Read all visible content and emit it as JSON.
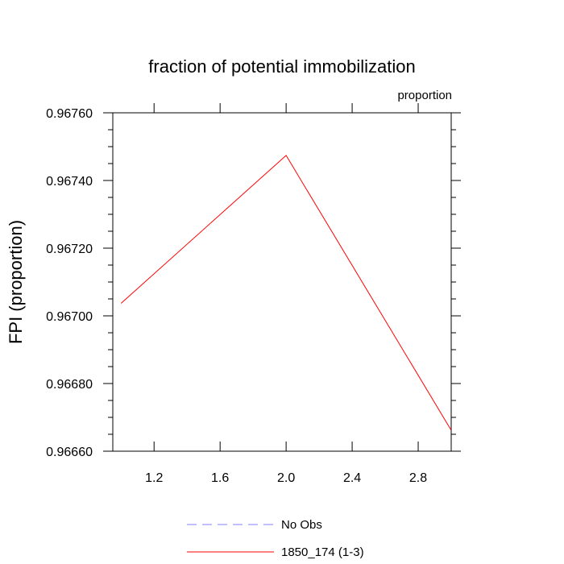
{
  "chart_data": {
    "type": "line",
    "title": "fraction of potential immobilization",
    "units_label": "proportion",
    "xlabel": "",
    "ylabel": "FPI  (proportion)",
    "xlim": [
      0.95,
      3.0
    ],
    "ylim": [
      0.9666,
      0.9676
    ],
    "x_ticks": [
      1.2,
      1.6,
      2.0,
      2.4,
      2.8
    ],
    "x_tick_labels": [
      "1.2",
      "1.6",
      "2.0",
      "2.4",
      "2.8"
    ],
    "y_ticks": [
      0.9666,
      0.9668,
      0.967,
      0.9672,
      0.9674,
      0.9676
    ],
    "y_tick_labels": [
      "0.96660",
      "0.96680",
      "0.96700",
      "0.96720",
      "0.96740",
      "0.96760"
    ],
    "grid": false,
    "legend_position": "bottom-center",
    "series": [
      {
        "name": "No Obs",
        "color": "#8080ff",
        "dash": "dashed",
        "x": [],
        "values": []
      },
      {
        "name": "1850_174 (1-3)",
        "color": "#ff0000",
        "dash": "solid",
        "x": [
          1.0,
          2.0,
          3.0
        ],
        "values": [
          0.967037,
          0.967474,
          0.966662
        ]
      }
    ]
  }
}
